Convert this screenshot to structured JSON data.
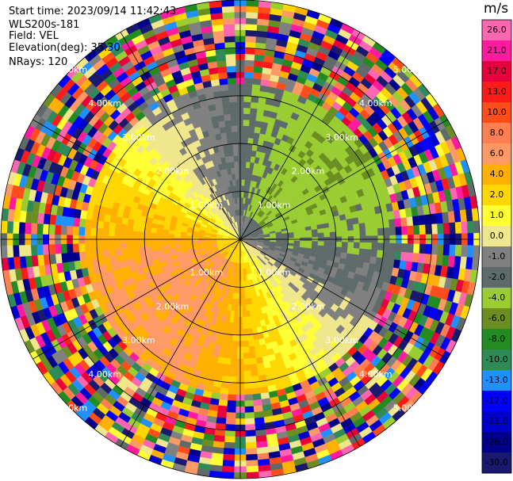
{
  "header": {
    "start_time": "Start time: 2023/09/14 11:42:43",
    "instrument": "WLS200s-181",
    "field": "Field: VEL",
    "elevation": "Elevation(deg): 35.30",
    "nrays": "NRays: 120"
  },
  "range_rings": [
    {
      "range_km": 1.0,
      "label": "1.00km"
    },
    {
      "range_km": 2.0,
      "label": "2.00km"
    },
    {
      "range_km": 3.0,
      "label": "3.00km"
    },
    {
      "range_km": 4.0,
      "label": "4.00km"
    },
    {
      "range_km": 5.0,
      "label": "5.00km"
    }
  ],
  "colorbar": {
    "units": "m/s",
    "ticks": [
      "26.0",
      "21.0",
      "17.0",
      "13.0",
      "10.0",
      "8.0",
      "6.0",
      "4.0",
      "2.0",
      "1.0",
      "0.0",
      "-1.0",
      "-2.0",
      "-4.0",
      "-6.0",
      "-8.0",
      "-10.0",
      "-13.0",
      "-17.0",
      "-21.0",
      "-26.0",
      "-30.0"
    ],
    "colors": [
      "#ff66b2",
      "#ff1aa0",
      "#e8003c",
      "#ff1a1a",
      "#ff4d1a",
      "#ff7f50",
      "#ff9966",
      "#ffb000",
      "#ffd700",
      "#ffff33",
      "#f0e68c",
      "#808080",
      "#5f6a6a",
      "#9acd32",
      "#6b8e23",
      "#228b22",
      "#2e8b57",
      "#1e90ff",
      "#0000ff",
      "#0000cd",
      "#00008b",
      "#191970"
    ]
  },
  "chart_data": {
    "type": "heatmap",
    "projection": "polar PPI",
    "field": "VEL",
    "units": "m/s",
    "value_range": [
      -30,
      26
    ],
    "nrays": 120,
    "elevation_deg": 35.3,
    "max_range_km": 5.0,
    "range_rings_km": [
      1,
      2,
      3,
      4,
      5
    ],
    "spoke_angles_deg": [
      0,
      30,
      60,
      90,
      120,
      150,
      180,
      210,
      240,
      270,
      300,
      330
    ],
    "pattern": {
      "negative_velocity_sector_bearing_deg": 50,
      "positive_velocity_sector_bearing_deg": 230,
      "valid_data_range_km": 3.2,
      "noise_beyond_km": 3.2
    }
  }
}
